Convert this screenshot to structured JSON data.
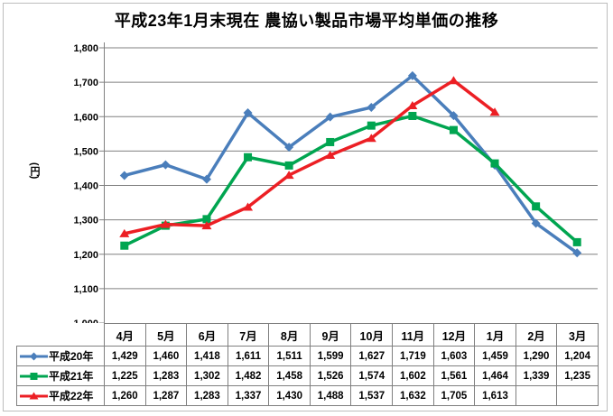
{
  "chart_data": {
    "type": "line",
    "title": "平成23年1月末現在 農協い製品市場平均単価の推移",
    "ylabel": "(円)",
    "xlabel": "",
    "ylim": [
      1000,
      1800
    ],
    "ytick_step": 100,
    "grid": true,
    "gridline_color": "#808080",
    "axis_color": "#808080",
    "legend_position": "table-left-column",
    "categories": [
      "4月",
      "5月",
      "6月",
      "7月",
      "8月",
      "9月",
      "10月",
      "11月",
      "12月",
      "1月",
      "2月",
      "3月"
    ],
    "series": [
      {
        "id": "heisei20",
        "name": "平成20年",
        "color": "#4A7EBB",
        "marker": "diamond",
        "values": [
          1429,
          1460,
          1418,
          1611,
          1511,
          1599,
          1627,
          1719,
          1603,
          1459,
          1290,
          1204
        ]
      },
      {
        "id": "heisei21",
        "name": "平成21年",
        "color": "#00A550",
        "marker": "square",
        "values": [
          1225,
          1283,
          1302,
          1482,
          1458,
          1526,
          1574,
          1602,
          1561,
          1464,
          1339,
          1235
        ]
      },
      {
        "id": "heisei22",
        "name": "平成22年",
        "color": "#EC1F24",
        "marker": "triangle",
        "values": [
          1260,
          1287,
          1283,
          1337,
          1430,
          1488,
          1537,
          1632,
          1705,
          1613,
          null,
          null
        ]
      }
    ]
  }
}
